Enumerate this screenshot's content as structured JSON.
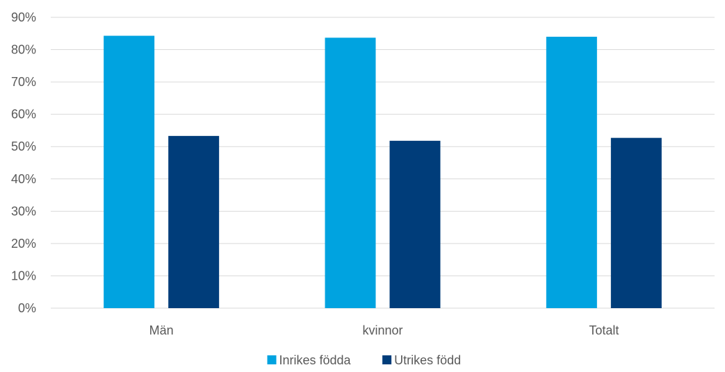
{
  "chart_data": {
    "type": "bar",
    "categories": [
      "Män",
      "kvinnor",
      "Totalt"
    ],
    "series": [
      {
        "name": "Inrikes födda",
        "color": "#00a3e0",
        "values": [
          84.3,
          83.7,
          84.0
        ]
      },
      {
        "name": "Utrikes född",
        "color": "#003d7a",
        "values": [
          53.3,
          51.8,
          52.7
        ]
      }
    ],
    "ylim": [
      0,
      90
    ],
    "yticks": [
      0,
      10,
      20,
      30,
      40,
      50,
      60,
      70,
      80,
      90
    ],
    "ytick_format": "percent",
    "grid": true,
    "legend_position": "bottom",
    "title": "",
    "xlabel": "",
    "ylabel": ""
  }
}
